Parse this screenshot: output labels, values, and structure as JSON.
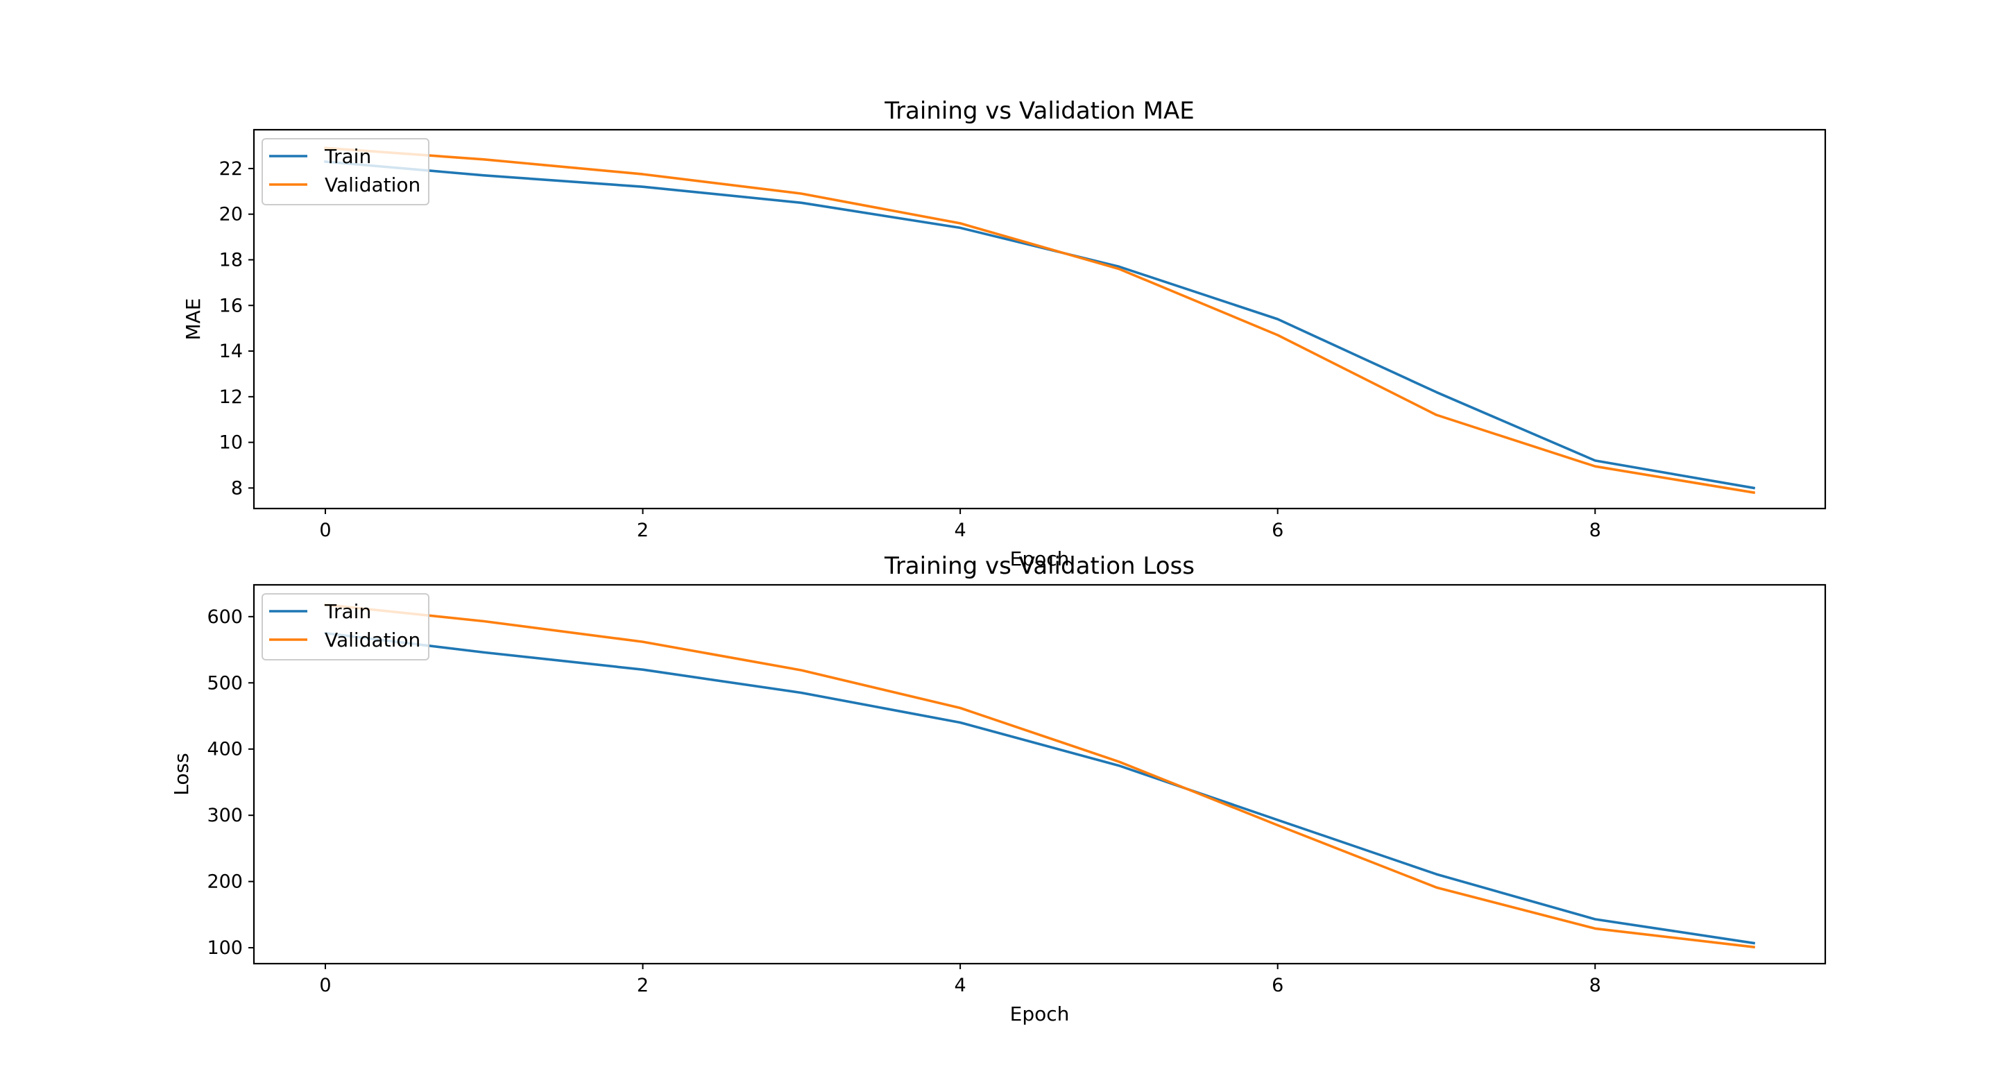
{
  "colors": {
    "train": "#1f77b4",
    "validation": "#ff7f0e",
    "background": "#ffffff",
    "axes": "#000000"
  },
  "chart_data": [
    {
      "type": "line",
      "title": "Training vs Validation MAE",
      "xlabel": "Epoch",
      "ylabel": "MAE",
      "x": [
        0,
        1,
        2,
        3,
        4,
        5,
        6,
        7,
        8,
        9
      ],
      "xlim": [
        -0.45,
        9.45
      ],
      "ylim": [
        7.1,
        23.7
      ],
      "xticks": [
        0,
        2,
        4,
        6,
        8
      ],
      "yticks": [
        8,
        10,
        12,
        14,
        16,
        18,
        20,
        22
      ],
      "grid": false,
      "legend": "upper left",
      "series": [
        {
          "name": "Train",
          "color": "#1f77b4",
          "values": [
            22.3,
            21.7,
            21.2,
            20.5,
            19.4,
            17.7,
            15.4,
            12.2,
            9.2,
            8.0
          ]
        },
        {
          "name": "Validation",
          "color": "#ff7f0e",
          "values": [
            22.9,
            22.4,
            21.75,
            20.9,
            19.6,
            17.6,
            14.7,
            11.2,
            8.95,
            7.8
          ]
        }
      ]
    },
    {
      "type": "line",
      "title": "Training vs Validation Loss",
      "xlabel": "Epoch",
      "ylabel": "Loss",
      "x": [
        0,
        1,
        2,
        3,
        4,
        5,
        6,
        7,
        8,
        9
      ],
      "xlim": [
        -0.45,
        9.45
      ],
      "ylim": [
        76,
        648
      ],
      "xticks": [
        0,
        2,
        4,
        6,
        8
      ],
      "yticks": [
        100,
        200,
        300,
        400,
        500,
        600
      ],
      "grid": false,
      "legend": "upper left",
      "series": [
        {
          "name": "Train",
          "color": "#1f77b4",
          "values": [
            575,
            546,
            520,
            485,
            440,
            375,
            293,
            211,
            143,
            107
          ]
        },
        {
          "name": "Validation",
          "color": "#ff7f0e",
          "values": [
            618,
            593,
            562,
            519,
            462,
            381,
            285,
            191,
            129,
            101
          ]
        }
      ]
    }
  ]
}
